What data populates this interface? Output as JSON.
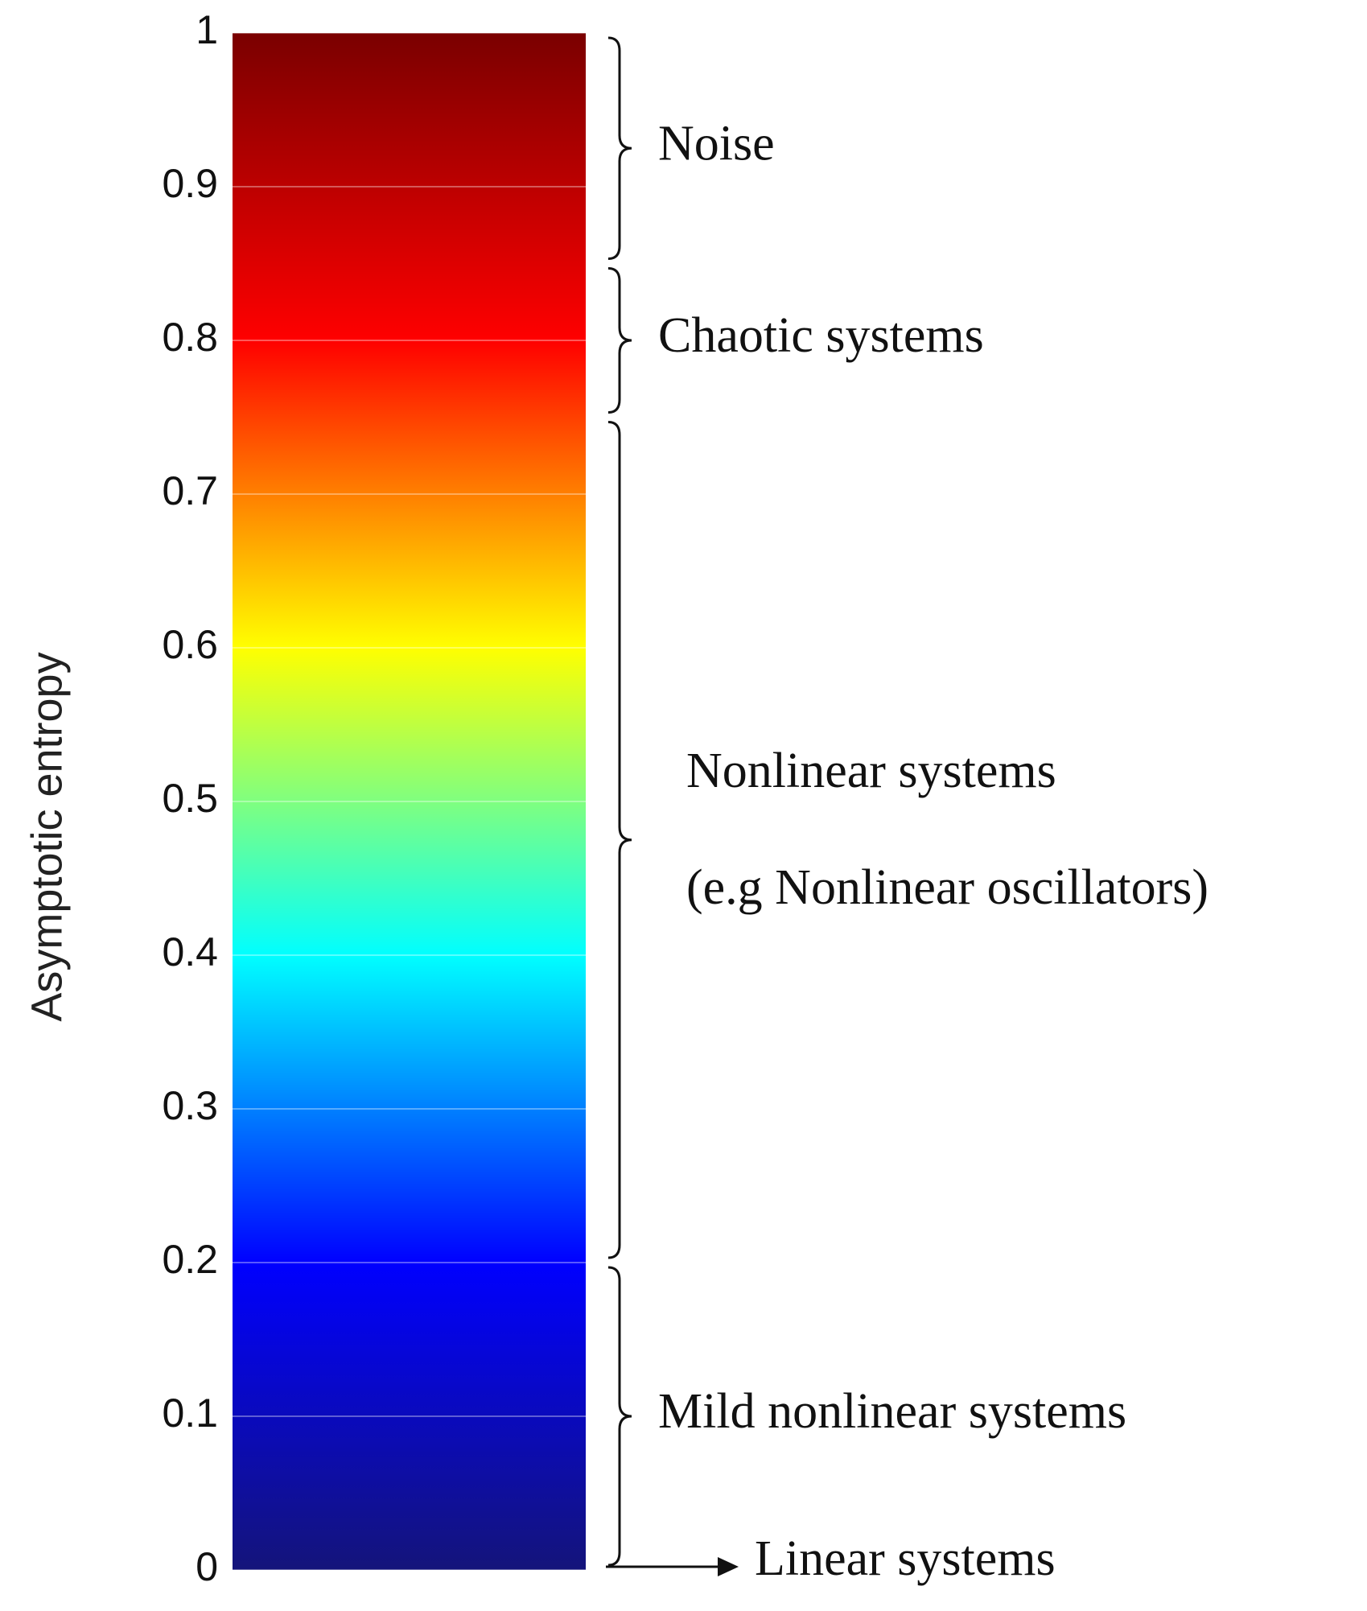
{
  "chart_data": {
    "type": "colorbar",
    "ylabel": "Asymptotic entropy",
    "ylim": [
      0,
      1
    ],
    "yticks": [
      0,
      0.1,
      0.2,
      0.3,
      0.4,
      0.5,
      0.6,
      0.7,
      0.8,
      0.9,
      1
    ],
    "grid": true,
    "colormap": "jet",
    "colors": [
      "#14147a",
      "#0000ff",
      "#00ffff",
      "#ffff00",
      "#ff0000",
      "#7a0000"
    ],
    "annotations": [
      {
        "label": "Noise",
        "range": [
          0.85,
          1
        ]
      },
      {
        "label": "Chaotic systems",
        "range": [
          0.75,
          0.85
        ]
      },
      {
        "label": "Nonlinear systems",
        "sublabel": "(e.g Nonlinear oscillators)",
        "range": [
          0.2,
          0.75
        ]
      },
      {
        "label": "Mild nonlinear systems",
        "range": [
          0,
          0.2
        ]
      }
    ],
    "arrow": {
      "label": "Linear systems",
      "value": 0
    }
  }
}
